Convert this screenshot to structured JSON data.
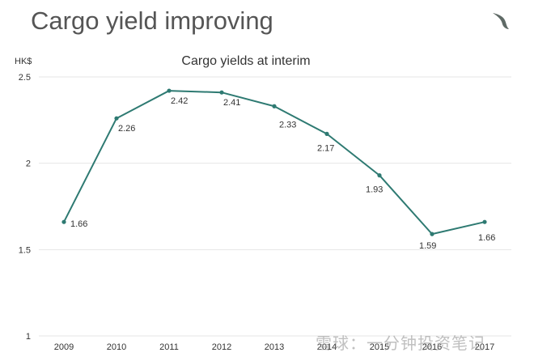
{
  "slide_title": "Cargo yield improving",
  "unit_label": "HK$",
  "watermark_text": "雪球：一分钟投资笔记",
  "colors": {
    "line": "#2e7a72",
    "grid": "#e6e6e6",
    "text": "#333333"
  },
  "logo_icon": "airline-brushwing-logo",
  "chart_data": {
    "type": "line",
    "title": "Cargo yields at interim",
    "xlabel": "",
    "ylabel": "HK$",
    "categories": [
      "2009",
      "2010",
      "2011",
      "2012",
      "2013",
      "2014",
      "2015",
      "2016",
      "2017"
    ],
    "series": [
      {
        "values": [
          1.66,
          2.26,
          2.42,
          2.41,
          2.33,
          2.17,
          1.93,
          1.59,
          1.66
        ]
      }
    ],
    "data_labels": [
      "1.66",
      "2.26",
      "2.42",
      "2.41",
      "2.33",
      "2.17",
      "1.93",
      "1.59",
      "1.66"
    ],
    "ylim": [
      1,
      2.5
    ],
    "yticks": [
      1,
      1.5,
      2,
      2.5
    ],
    "ytick_labels": [
      "1",
      "1.5",
      "2",
      "2.5"
    ],
    "grid": true,
    "legend": false
  }
}
